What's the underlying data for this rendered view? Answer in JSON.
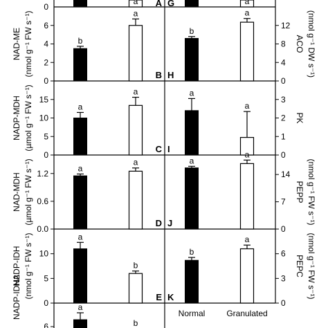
{
  "chart_data": {
    "type": "bar",
    "categories": [
      "Normal",
      "Granulated"
    ],
    "top_partial": {
      "left": {
        "letter": "A",
        "tick": "0",
        "sig": [
          "",
          "a"
        ]
      },
      "right": {
        "letter": "G",
        "sig": [
          "",
          "a"
        ]
      }
    },
    "bottom_partial": {
      "left": {
        "ylabel": "NADP-IDH2",
        "sig": [
          "a",
          "b"
        ],
        "tick": "6"
      }
    },
    "rows": [
      {
        "left": {
          "letter": "B",
          "ylabel": "NAD-ME",
          "unit": "(nmol g⁻¹ FW s⁻¹)",
          "ylim": [
            0,
            8
          ],
          "yticks": [
            0,
            2,
            4,
            6
          ],
          "ytick_labels": [
            "0",
            "2",
            "4",
            "6"
          ],
          "values": [
            3.5,
            6.0
          ],
          "errors": [
            0.25,
            0.7
          ],
          "sig": [
            "b",
            "a"
          ]
        },
        "right": {
          "letter": "H",
          "ylabel": "ACO",
          "unit": "(nmol g⁻¹ DW s⁻¹)",
          "ylim": [
            0,
            16
          ],
          "yticks": [
            0,
            4,
            8,
            12
          ],
          "ytick_labels": [
            "0",
            "4",
            "8",
            "12"
          ],
          "values": [
            9.2,
            12.7
          ],
          "errors": [
            0.4,
            0.8
          ],
          "sig": [
            "b",
            "a"
          ]
        }
      },
      {
        "left": {
          "letter": "C",
          "ylabel": "NADP-MDH",
          "unit": "(µmol g⁻¹ FW s⁻¹)",
          "ylim": [
            0,
            20
          ],
          "yticks": [
            0,
            5,
            10,
            15
          ],
          "ytick_labels": [
            "0",
            "5",
            "10",
            "15"
          ],
          "values": [
            10.0,
            13.4
          ],
          "errors": [
            1.5,
            2.2
          ],
          "sig": [
            "a",
            "a"
          ]
        },
        "right": {
          "letter": "I",
          "ylabel": "PK",
          "unit": "",
          "ylim": [
            0,
            4
          ],
          "yticks": [
            0,
            1,
            2,
            3
          ],
          "ytick_labels": [
            "0",
            "1",
            "2",
            "3"
          ],
          "values": [
            2.4,
            0.95
          ],
          "errors": [
            0.65,
            1.4
          ],
          "sig": [
            "a",
            "a"
          ]
        }
      },
      {
        "left": {
          "letter": "D",
          "ylabel": "NAD-MDH",
          "unit": "(µmol g⁻¹ FW s⁻¹)",
          "ylim": [
            0,
            1.6
          ],
          "yticks": [
            0,
            0.6,
            1.2
          ],
          "ytick_labels": [
            "0.0",
            "0.6",
            "1.2"
          ],
          "values": [
            1.15,
            1.25
          ],
          "errors": [
            0.04,
            0.07
          ],
          "sig": [
            "a",
            "a"
          ]
        },
        "right": {
          "letter": "J",
          "ylabel": "PEPP",
          "unit": "(nmol g⁻¹ FW s⁻¹)",
          "ylim": [
            0,
            19
          ],
          "yticks": [
            0,
            7,
            14
          ],
          "ytick_labels": [
            "0",
            "7",
            "14"
          ],
          "values": [
            15.7,
            16.8
          ],
          "errors": [
            0.4,
            0.9
          ],
          "sig": [
            "a",
            "a"
          ]
        }
      },
      {
        "left": {
          "letter": "E",
          "ylabel": "NADP-IDH",
          "unit": "(nmol g⁻¹ FW s⁻¹)",
          "ylim": [
            0,
            15
          ],
          "yticks": [
            0,
            5,
            10
          ],
          "ytick_labels": [
            "0",
            "5",
            "10"
          ],
          "values": [
            11.0,
            6.0
          ],
          "errors": [
            1.3,
            0.5
          ],
          "sig": [
            "a",
            "b"
          ]
        },
        "right": {
          "letter": "K",
          "ylabel": "PEPC",
          "unit": "(nmol g⁻¹ FW s⁻¹)",
          "ylim": [
            0,
            9
          ],
          "yticks": [
            0,
            3,
            6
          ],
          "ytick_labels": [
            "0",
            "3",
            "6"
          ],
          "values": [
            5.2,
            6.6
          ],
          "errors": [
            0.35,
            0.45
          ],
          "sig": [
            "b",
            "a"
          ]
        }
      }
    ]
  }
}
